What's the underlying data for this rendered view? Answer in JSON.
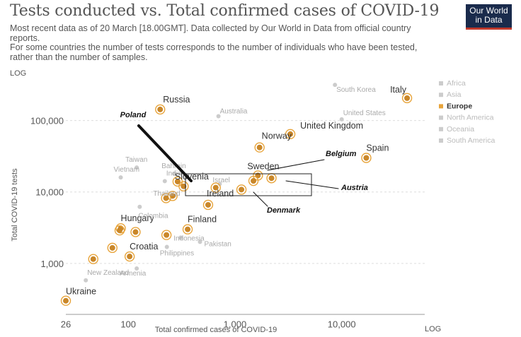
{
  "header": {
    "title": "Tests conducted vs. Total confirmed cases of COVID-19",
    "subtitle_1": "Most recent data as of 20 March [18.00GMT]. Data collected by Our World in Data from official country reports.",
    "subtitle_2": "For some countries the number of tests corresponds to the number of individuals who have been tested, rather than the number of samples.",
    "logo_line_1": "Our World",
    "logo_line_2": "in Data"
  },
  "colors": {
    "europe": "#e8a43a",
    "europe_ring": "#e8a43a",
    "europe_fill": "#c9872a",
    "other": "#cccccc",
    "text_grey": "#aaaaaa",
    "legend_grey": "#bbbbbb",
    "annotation": "#111111"
  },
  "chart_data": {
    "type": "scatter",
    "xlabel": "Total confirmed cases of COVID-19",
    "ylabel": "Total COVID-19 tests",
    "x_scale_label": "LOG",
    "y_scale_label": "LOG",
    "x_scale": "log",
    "y_scale": "log",
    "xlim": [
      26,
      60000
    ],
    "ylim": [
      260,
      380000
    ],
    "x_ticks": [
      {
        "v": 26,
        "label": "26"
      },
      {
        "v": 100,
        "label": "100"
      },
      {
        "v": 1000,
        "label": "1,000"
      },
      {
        "v": 10000,
        "label": "10,000"
      }
    ],
    "y_ticks": [
      {
        "v": 1000,
        "label": "1,000"
      },
      {
        "v": 10000,
        "label": "10,000"
      },
      {
        "v": 100000,
        "label": "100,000"
      }
    ],
    "gridlines": "horizontal dashed",
    "legend_position": "right",
    "legend": [
      {
        "name": "Africa",
        "highlight": false
      },
      {
        "name": "Asia",
        "highlight": false
      },
      {
        "name": "Europe",
        "highlight": true
      },
      {
        "name": "North America",
        "highlight": false
      },
      {
        "name": "Oceania",
        "highlight": false
      },
      {
        "name": "South America",
        "highlight": false
      }
    ],
    "points": [
      {
        "name": "Italy",
        "x": 41000,
        "y": 206000,
        "region": "Europe",
        "show_label": true
      },
      {
        "name": "Russia",
        "x": 199,
        "y": 143000,
        "region": "Europe",
        "show_label": true
      },
      {
        "name": "United Kingdom",
        "x": 3300,
        "y": 64600,
        "region": "Europe",
        "show_label": true
      },
      {
        "name": "Norway",
        "x": 1700,
        "y": 42000,
        "region": "Europe",
        "show_label": true
      },
      {
        "name": "Spain",
        "x": 17000,
        "y": 30000,
        "region": "Europe",
        "show_label": true
      },
      {
        "name": "Sweden",
        "x": 1640,
        "y": 17000,
        "region": "Europe",
        "show_label": true
      },
      {
        "name": "Austria",
        "x": 2200,
        "y": 15600,
        "region": "Europe",
        "show_label": false
      },
      {
        "name": "Belgium",
        "x": 1490,
        "y": 14300,
        "region": "Europe",
        "show_label": false
      },
      {
        "name": "Denmark",
        "x": 1150,
        "y": 10800,
        "region": "Europe",
        "show_label": false
      },
      {
        "name": "Slovenia",
        "x": 290,
        "y": 14000,
        "region": "Europe",
        "show_label": true
      },
      {
        "name": "Poland",
        "x": 330,
        "y": 12000,
        "region": "Europe",
        "show_label": false
      },
      {
        "name": "Europe (unlabelled)",
        "x": 660,
        "y": 11500,
        "region": "Europe",
        "show_label": false
      },
      {
        "name": "Ireland",
        "x": 560,
        "y": 6600,
        "region": "Europe",
        "show_label": true
      },
      {
        "name": "Europe (unlabelled)",
        "x": 260,
        "y": 8800,
        "region": "Europe",
        "show_label": false
      },
      {
        "name": "Europe (unlabelled)",
        "x": 226,
        "y": 8200,
        "region": "Europe",
        "show_label": false
      },
      {
        "name": "Finland",
        "x": 360,
        "y": 3000,
        "region": "Europe",
        "show_label": true
      },
      {
        "name": "Europe (unlabelled)",
        "x": 228,
        "y": 2500,
        "region": "Europe",
        "show_label": false
      },
      {
        "name": "Hungary",
        "x": 85,
        "y": 3100,
        "region": "Europe",
        "show_label": true
      },
      {
        "name": "Europe (unlabelled)",
        "x": 83,
        "y": 2900,
        "region": "Europe",
        "show_label": false
      },
      {
        "name": "Europe (unlabelled)",
        "x": 117,
        "y": 2750,
        "region": "Europe",
        "show_label": false
      },
      {
        "name": "Europe (unlabelled)",
        "x": 71,
        "y": 1650,
        "region": "Europe",
        "show_label": false
      },
      {
        "name": "Croatia",
        "x": 103,
        "y": 1250,
        "region": "Europe",
        "show_label": true
      },
      {
        "name": "Europe (unlabelled)",
        "x": 47,
        "y": 1150,
        "region": "Europe",
        "show_label": false
      },
      {
        "name": "Ukraine",
        "x": 26,
        "y": 300,
        "region": "Europe",
        "show_label": true
      },
      {
        "name": "South Korea",
        "x": 8650,
        "y": 316000,
        "region": "Other",
        "show_label": true
      },
      {
        "name": "Australia",
        "x": 700,
        "y": 115000,
        "region": "Other",
        "show_label": true
      },
      {
        "name": "United States",
        "x": 10000,
        "y": 104000,
        "region": "Other",
        "show_label": true
      },
      {
        "name": "Taiwan",
        "x": 120,
        "y": 22000,
        "region": "Other",
        "show_label": true
      },
      {
        "name": "Vietnam",
        "x": 85,
        "y": 16000,
        "region": "Other",
        "show_label": true
      },
      {
        "name": "India",
        "x": 220,
        "y": 14200,
        "region": "Other",
        "show_label": true
      },
      {
        "name": "Bahrain",
        "x": 270,
        "y": 18000,
        "region": "Other",
        "show_label": true
      },
      {
        "name": "Israel",
        "x": 720,
        "y": 13000,
        "region": "Other",
        "show_label": true
      },
      {
        "name": "Thailand",
        "x": 270,
        "y": 8900,
        "region": "Other",
        "show_label": true
      },
      {
        "name": "Colombia",
        "x": 128,
        "y": 6200,
        "region": "Other",
        "show_label": true
      },
      {
        "name": "Indonesia",
        "x": 310,
        "y": 2300,
        "region": "Other",
        "show_label": true
      },
      {
        "name": "Pakistan",
        "x": 470,
        "y": 2000,
        "region": "Other",
        "show_label": true
      },
      {
        "name": "Philippines",
        "x": 230,
        "y": 1700,
        "region": "Other",
        "show_label": true
      },
      {
        "name": "Armenia",
        "x": 120,
        "y": 850,
        "region": "Other",
        "show_label": true
      },
      {
        "name": "New Zealand",
        "x": 40,
        "y": 580,
        "region": "Other",
        "show_label": true
      }
    ],
    "annotations": [
      {
        "label": "Poland",
        "ann_x": 188,
        "ann_y": 166
      },
      {
        "label": "Belgium",
        "ann_x": 460,
        "ann_y": 221
      },
      {
        "label": "Austria",
        "ann_x": 482,
        "ann_y": 269
      },
      {
        "label": "Denmark",
        "ann_x": 377,
        "ann_y": 301
      }
    ]
  }
}
